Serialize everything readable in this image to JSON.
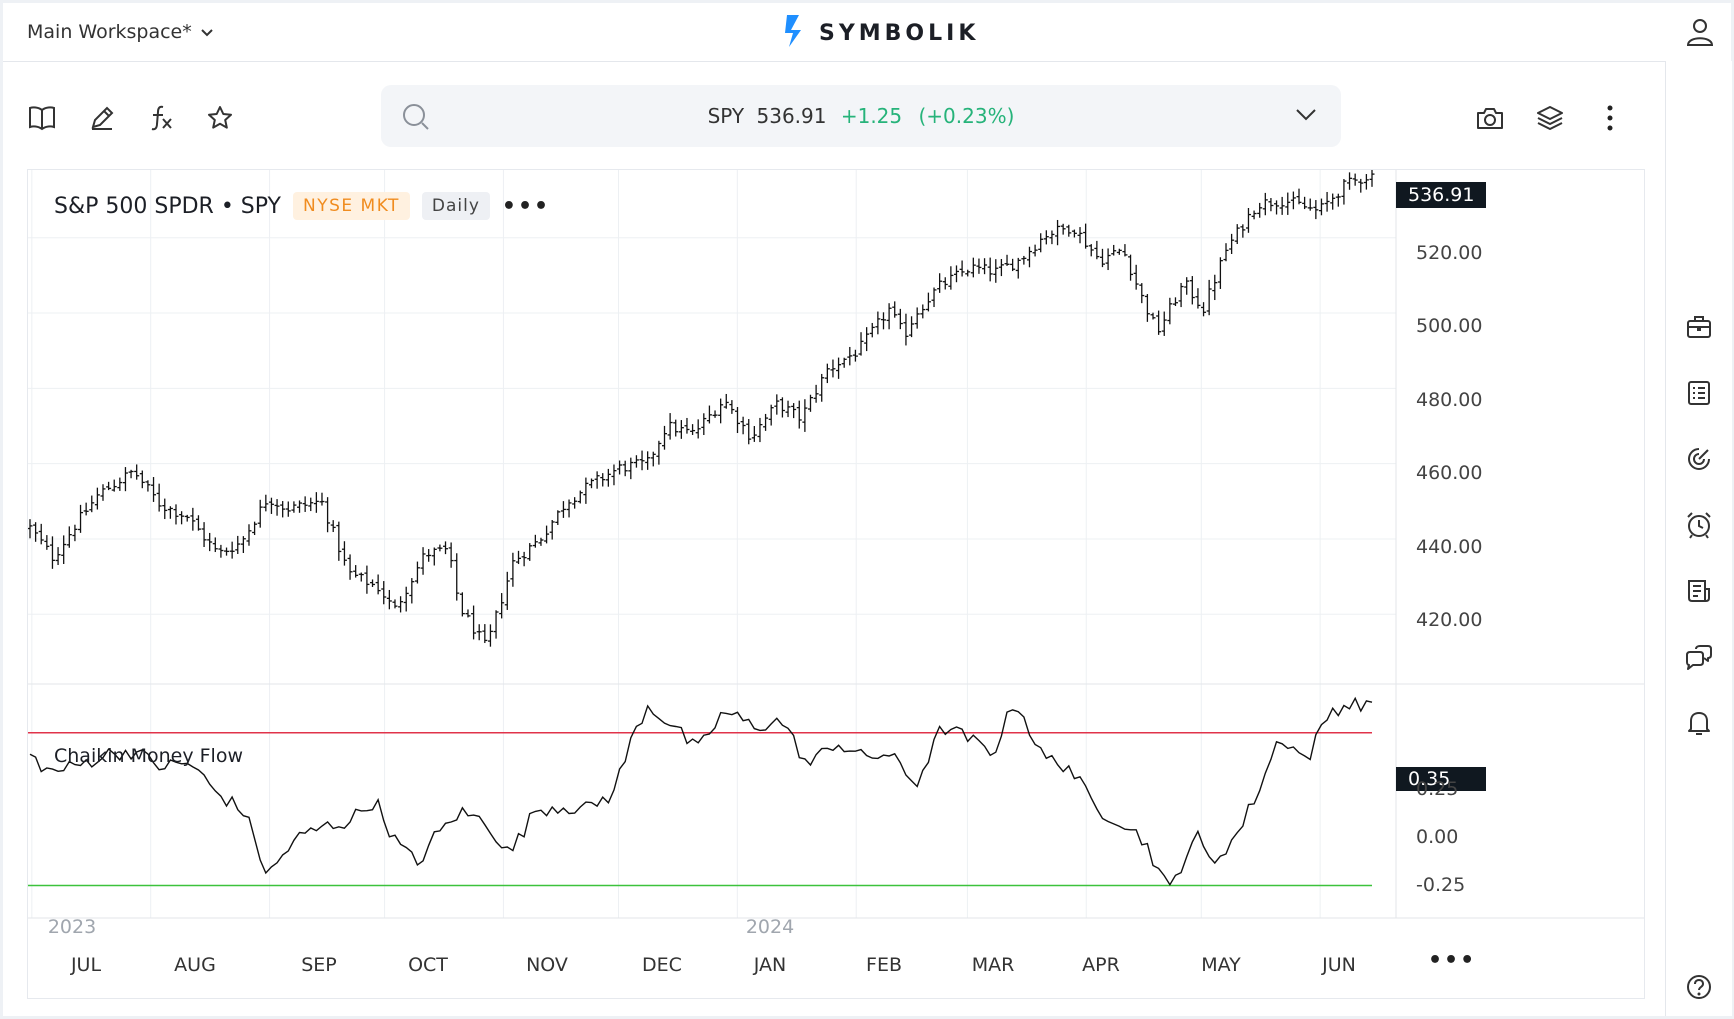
{
  "header": {
    "workspace_label": "Main Workspace*",
    "logo_text": "SYMBOLIK"
  },
  "toolbar": {
    "icons": [
      "book-icon",
      "pencil-icon",
      "function-icon",
      "star-icon",
      "camera-icon",
      "layers-icon",
      "more-vertical-icon"
    ]
  },
  "search": {
    "symbol": "SPY",
    "price": "536.91",
    "change": "+1.25",
    "change_pct": "(+0.23%)"
  },
  "sidebar": {
    "icons": [
      "briefcase-icon",
      "ledger-icon",
      "radar-icon",
      "alarm-clock-icon",
      "news-icon",
      "chat-icon",
      "bell-icon",
      "help-icon"
    ]
  },
  "colors": {
    "accent": "#1f8fff",
    "up": "#26b37a",
    "badge_exchange": "#f08c1f",
    "overbought_line": "#e0334a",
    "oversold_line": "#3cc23c"
  },
  "chart_data": [
    {
      "type": "ohlc",
      "title": "S&P 500 SPDR • SPY",
      "exchange": "NYSE MKT",
      "interval": "Daily",
      "last_price_label": "536.91",
      "ylim": [
        402,
        538
      ],
      "y_ticks": [
        "420.00",
        "440.00",
        "460.00",
        "480.00",
        "500.00",
        "520.00"
      ],
      "x_ticks": [
        "JUL",
        "AUG",
        "SEP",
        "OCT",
        "NOV",
        "DEC",
        "JAN",
        "FEB",
        "MAR",
        "APR",
        "MAY",
        "JUN"
      ],
      "year_labels": [
        "2023",
        "2024"
      ],
      "grid": true,
      "anchors": [
        [
          "2023-06-30",
          443
        ],
        [
          "2023-07-06",
          435
        ],
        [
          "2023-07-12",
          444
        ],
        [
          "2023-07-18",
          452
        ],
        [
          "2023-07-27",
          458
        ],
        [
          "2023-08-03",
          449
        ],
        [
          "2023-08-10",
          446
        ],
        [
          "2023-08-18",
          436
        ],
        [
          "2023-08-24",
          439
        ],
        [
          "2023-08-31",
          451
        ],
        [
          "2023-09-05",
          448
        ],
        [
          "2023-09-14",
          450
        ],
        [
          "2023-09-21",
          431
        ],
        [
          "2023-09-29",
          427
        ],
        [
          "2023-10-03",
          421
        ],
        [
          "2023-10-11",
          436
        ],
        [
          "2023-10-17",
          437
        ],
        [
          "2023-10-20",
          422
        ],
        [
          "2023-10-27",
          411
        ],
        [
          "2023-11-03",
          434
        ],
        [
          "2023-11-10",
          440
        ],
        [
          "2023-11-17",
          450
        ],
        [
          "2023-11-24",
          455
        ],
        [
          "2023-12-01",
          459
        ],
        [
          "2023-12-08",
          460
        ],
        [
          "2023-12-13",
          470
        ],
        [
          "2023-12-20",
          468
        ],
        [
          "2023-12-28",
          477
        ],
        [
          "2024-01-04",
          467
        ],
        [
          "2024-01-11",
          476
        ],
        [
          "2024-01-17",
          472
        ],
        [
          "2024-01-24",
          485
        ],
        [
          "2024-02-01",
          490
        ],
        [
          "2024-02-09",
          501
        ],
        [
          "2024-02-13",
          494
        ],
        [
          "2024-02-16",
          500
        ],
        [
          "2024-02-22",
          507
        ],
        [
          "2024-03-01",
          512
        ],
        [
          "2024-03-08",
          511
        ],
        [
          "2024-03-14",
          514
        ],
        [
          "2024-03-21",
          521
        ],
        [
          "2024-03-28",
          523
        ],
        [
          "2024-04-04",
          514
        ],
        [
          "2024-04-10",
          517
        ],
        [
          "2024-04-15",
          504
        ],
        [
          "2024-04-19",
          495
        ],
        [
          "2024-04-26",
          508
        ],
        [
          "2024-05-01",
          501
        ],
        [
          "2024-05-07",
          517
        ],
        [
          "2024-05-15",
          529
        ],
        [
          "2024-05-22",
          530
        ],
        [
          "2024-05-31",
          527
        ],
        [
          "2024-06-07",
          534
        ],
        [
          "2024-06-14",
          536.91
        ]
      ]
    },
    {
      "type": "line",
      "title": "Chaikin Money Flow",
      "last_value_label": "0.35",
      "ylim": [
        -0.33,
        0.39
      ],
      "y_ticks": [
        "0.25",
        "0.00",
        "-0.25"
      ],
      "reference_lines": [
        0.25,
        -0.25
      ],
      "anchors": [
        [
          "2023-06-30",
          0.18
        ],
        [
          "2023-07-05",
          0.12
        ],
        [
          "2023-07-12",
          0.14
        ],
        [
          "2023-07-20",
          0.18
        ],
        [
          "2023-07-27",
          0.19
        ],
        [
          "2023-08-03",
          0.14
        ],
        [
          "2023-08-11",
          0.15
        ],
        [
          "2023-08-17",
          0.06
        ],
        [
          "2023-08-25",
          -0.01
        ],
        [
          "2023-08-31",
          -0.22
        ],
        [
          "2023-09-07",
          -0.1
        ],
        [
          "2023-09-14",
          -0.06
        ],
        [
          "2023-09-21",
          -0.04
        ],
        [
          "2023-09-28",
          0.03
        ],
        [
          "2023-10-03",
          -0.1
        ],
        [
          "2023-10-09",
          -0.18
        ],
        [
          "2023-10-13",
          -0.1
        ],
        [
          "2023-10-20",
          -0.01
        ],
        [
          "2023-10-27",
          -0.04
        ],
        [
          "2023-11-02",
          -0.15
        ],
        [
          "2023-11-09",
          0.0
        ],
        [
          "2023-11-16",
          0.01
        ],
        [
          "2023-11-22",
          0.0
        ],
        [
          "2023-11-29",
          0.05
        ],
        [
          "2023-12-04",
          0.23
        ],
        [
          "2023-12-08",
          0.34
        ],
        [
          "2023-12-15",
          0.27
        ],
        [
          "2023-12-21",
          0.19
        ],
        [
          "2023-12-28",
          0.32
        ],
        [
          "2024-01-05",
          0.27
        ],
        [
          "2024-01-12",
          0.29
        ],
        [
          "2024-01-19",
          0.14
        ],
        [
          "2024-01-26",
          0.22
        ],
        [
          "2024-02-02",
          0.17
        ],
        [
          "2024-02-09",
          0.18
        ],
        [
          "2024-02-16",
          0.08
        ],
        [
          "2024-02-23",
          0.27
        ],
        [
          "2024-03-01",
          0.23
        ],
        [
          "2024-03-07",
          0.18
        ],
        [
          "2024-03-13",
          0.36
        ],
        [
          "2024-03-20",
          0.17
        ],
        [
          "2024-03-27",
          0.14
        ],
        [
          "2024-04-03",
          0.0
        ],
        [
          "2024-04-10",
          -0.04
        ],
        [
          "2024-04-16",
          -0.11
        ],
        [
          "2024-04-22",
          -0.27
        ],
        [
          "2024-04-29",
          -0.08
        ],
        [
          "2024-05-03",
          -0.18
        ],
        [
          "2024-05-10",
          -0.08
        ],
        [
          "2024-05-16",
          0.08
        ],
        [
          "2024-05-21",
          0.24
        ],
        [
          "2024-05-28",
          0.16
        ],
        [
          "2024-06-03",
          0.32
        ],
        [
          "2024-06-07",
          0.34
        ],
        [
          "2024-06-14",
          0.35
        ]
      ]
    }
  ]
}
